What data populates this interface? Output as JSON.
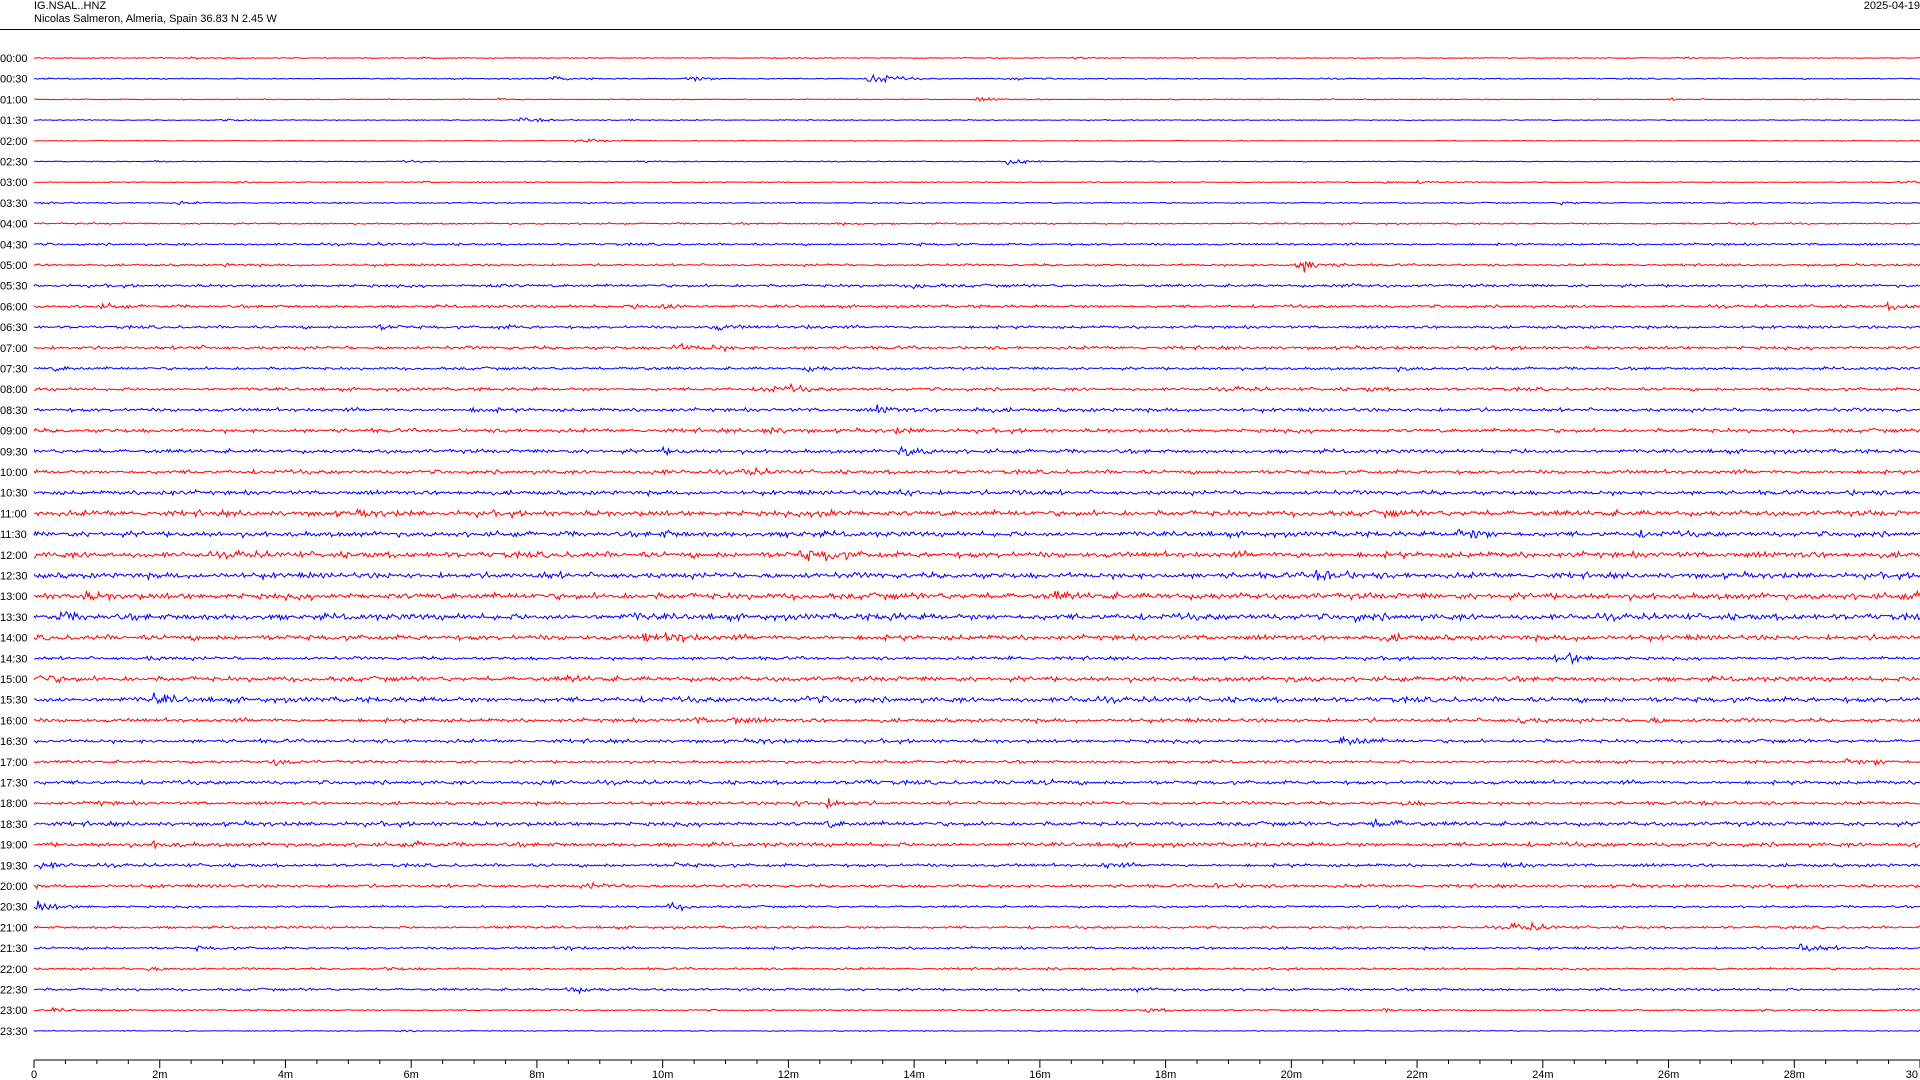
{
  "header": {
    "station_code": "IG.NSAL..HNZ",
    "location": "Nicolas Salmeron, Almeria, Spain  36.83 N 2.45 W",
    "date": "2025-04-19"
  },
  "chart_data": {
    "type": "line",
    "title": "IG.NSAL..HNZ",
    "subtitle": "Nicolas Salmeron, Almeria, Spain  36.83 N 2.45 W",
    "xlabel": "",
    "ylabel": "",
    "x_unit": "minutes",
    "xlim": [
      0,
      30
    ],
    "x_ticks": [
      "0",
      "2m",
      "4m",
      "6m",
      "8m",
      "10m",
      "12m",
      "14m",
      "16m",
      "18m",
      "20m",
      "22m",
      "24m",
      "26m",
      "28m",
      "30"
    ],
    "colors": {
      "even_rows": "#ff0000",
      "odd_rows": "#0000ff"
    },
    "rows": [
      {
        "label": "00:00",
        "noise": 0.15,
        "events": [
          [
            2.5,
            0.4
          ],
          [
            6.2,
            0.3
          ],
          [
            16.5,
            0.3
          ],
          [
            26.3,
            0.3
          ],
          [
            30,
            0.4
          ]
        ]
      },
      {
        "label": "00:30",
        "noise": 0.2,
        "events": [
          [
            8.2,
            0.8
          ],
          [
            10.4,
            1.2
          ],
          [
            13.3,
            3.0
          ],
          [
            15.5,
            0.7
          ]
        ]
      },
      {
        "label": "01:00",
        "noise": 0.15,
        "events": [
          [
            7.4,
            0.4
          ],
          [
            15.0,
            0.8
          ],
          [
            20.4,
            0.4
          ],
          [
            26.0,
            0.3
          ]
        ]
      },
      {
        "label": "01:30",
        "noise": 0.15,
        "events": [
          [
            3.0,
            0.5
          ],
          [
            7.7,
            0.8
          ],
          [
            8.0,
            0.5
          ],
          [
            9.5,
            0.3
          ]
        ]
      },
      {
        "label": "02:00",
        "noise": 0.12,
        "events": [
          [
            8.8,
            0.6
          ],
          [
            8.6,
            0.3
          ]
        ]
      },
      {
        "label": "02:30",
        "noise": 0.15,
        "events": [
          [
            1.9,
            0.3
          ],
          [
            5.9,
            0.3
          ],
          [
            9.6,
            0.3
          ],
          [
            15.5,
            1.5
          ]
        ]
      },
      {
        "label": "03:00",
        "noise": 0.15,
        "events": [
          [
            3.2,
            0.4
          ],
          [
            6.2,
            0.3
          ],
          [
            21.5,
            0.5
          ],
          [
            22.0,
            0.5
          ],
          [
            29.7,
            0.4
          ]
        ]
      },
      {
        "label": "03:30",
        "noise": 0.2,
        "events": [
          [
            0.15,
            0.5
          ],
          [
            2.3,
            0.4
          ],
          [
            24.3,
            0.5
          ]
        ]
      },
      {
        "label": "04:00",
        "noise": 0.25,
        "events": [
          [
            12.8,
            0.4
          ],
          [
            27.0,
            0.5
          ]
        ]
      },
      {
        "label": "04:30",
        "noise": 0.35,
        "events": [
          [
            5.5,
            0.3
          ],
          [
            14.0,
            0.3
          ]
        ]
      },
      {
        "label": "05:00",
        "noise": 0.35,
        "events": [
          [
            3.0,
            0.3
          ],
          [
            20.1,
            1.6
          ],
          [
            20.2,
            1.0
          ]
        ]
      },
      {
        "label": "05:30",
        "noise": 0.45,
        "events": [
          [
            7.2,
            0.6
          ],
          [
            14.0,
            1.0
          ],
          [
            20.7,
            0.6
          ]
        ]
      },
      {
        "label": "06:00",
        "noise": 0.45,
        "events": [
          [
            1.1,
            0.7
          ],
          [
            9.5,
            0.9
          ],
          [
            10.0,
            1.2
          ],
          [
            29.5,
            1.0
          ]
        ]
      },
      {
        "label": "06:30",
        "noise": 0.45,
        "events": [
          [
            5.5,
            0.8
          ],
          [
            7.4,
            0.6
          ],
          [
            10.8,
            1.2
          ],
          [
            12.2,
            0.5
          ]
        ]
      },
      {
        "label": "07:00",
        "noise": 0.5,
        "events": [
          [
            2.5,
            0.5
          ],
          [
            10.2,
            1.3
          ],
          [
            10.8,
            0.6
          ]
        ]
      },
      {
        "label": "07:30",
        "noise": 0.45,
        "events": [
          [
            0.35,
            0.6
          ],
          [
            9.5,
            0.5
          ],
          [
            12.3,
            1.0
          ],
          [
            21.7,
            0.5
          ]
        ]
      },
      {
        "label": "08:00",
        "noise": 0.5,
        "events": [
          [
            11.6,
            1.2
          ],
          [
            12.0,
            0.8
          ],
          [
            19.1,
            0.6
          ],
          [
            21.2,
            0.5
          ]
        ]
      },
      {
        "label": "08:30",
        "noise": 0.55,
        "events": [
          [
            7.0,
            0.6
          ],
          [
            13.4,
            1.2
          ],
          [
            15.0,
            0.6
          ]
        ]
      },
      {
        "label": "09:00",
        "noise": 0.6,
        "events": [
          [
            11.6,
            1.3
          ],
          [
            13.7,
            0.7
          ]
        ]
      },
      {
        "label": "09:30",
        "noise": 0.6,
        "events": [
          [
            10.0,
            0.7
          ],
          [
            13.8,
            1.8
          ],
          [
            23.7,
            0.5
          ]
        ]
      },
      {
        "label": "10:00",
        "noise": 0.6,
        "events": [
          [
            9.8,
            0.6
          ],
          [
            11.3,
            1.3
          ]
        ]
      },
      {
        "label": "10:30",
        "noise": 0.65,
        "events": [
          [
            1.9,
            0.7
          ],
          [
            13.7,
            1.5
          ],
          [
            15.6,
            1.0
          ],
          [
            28.9,
            0.6
          ]
        ]
      },
      {
        "label": "11:00",
        "noise": 0.85,
        "events": [
          [
            5.2,
            0.7
          ],
          [
            12.5,
            1.8
          ],
          [
            21.5,
            0.6
          ]
        ]
      },
      {
        "label": "11:30",
        "noise": 0.8,
        "events": [
          [
            10.0,
            0.8
          ],
          [
            12.0,
            0.8
          ],
          [
            22.6,
            1.5
          ],
          [
            22.9,
            0.9
          ],
          [
            25.5,
            0.7
          ]
        ]
      },
      {
        "label": "12:00",
        "noise": 0.9,
        "events": [
          [
            3.2,
            0.6
          ],
          [
            12.2,
            1.8
          ],
          [
            12.6,
            1.2
          ],
          [
            20.0,
            0.6
          ]
        ]
      },
      {
        "label": "12:30",
        "noise": 0.85,
        "events": [
          [
            8.0,
            0.6
          ],
          [
            20.4,
            1.8
          ],
          [
            20.6,
            1.0
          ]
        ]
      },
      {
        "label": "13:00",
        "noise": 0.95,
        "events": [
          [
            0.8,
            1.0
          ],
          [
            16.2,
            1.2
          ],
          [
            29.8,
            0.8
          ]
        ]
      },
      {
        "label": "13:30",
        "noise": 0.95,
        "events": [
          [
            0.4,
            1.1
          ],
          [
            9.5,
            0.7
          ],
          [
            13.5,
            0.7
          ],
          [
            21.0,
            0.7
          ]
        ]
      },
      {
        "label": "14:00",
        "noise": 0.8,
        "events": [
          [
            9.7,
            1.4
          ],
          [
            10.1,
            1.8
          ],
          [
            21.5,
            0.7
          ],
          [
            24.4,
            0.6
          ]
        ]
      },
      {
        "label": "14:30",
        "noise": 0.5,
        "events": [
          [
            1.8,
            0.5
          ],
          [
            15.5,
            0.6
          ],
          [
            24.4,
            1.5
          ],
          [
            24.2,
            0.8
          ]
        ]
      },
      {
        "label": "15:00",
        "noise": 0.75,
        "events": [
          [
            0.1,
            1.3
          ],
          [
            8.5,
            0.7
          ],
          [
            20.0,
            0.6
          ]
        ]
      },
      {
        "label": "15:30",
        "noise": 0.8,
        "events": [
          [
            1.9,
            1.6
          ],
          [
            12.3,
            0.9
          ],
          [
            16.5,
            0.5
          ]
        ]
      },
      {
        "label": "16:00",
        "noise": 0.6,
        "events": [
          [
            10.5,
            0.8
          ],
          [
            11.1,
            1.3
          ],
          [
            23.6,
            1.0
          ],
          [
            25.7,
            0.7
          ]
        ]
      },
      {
        "label": "16:30",
        "noise": 0.55,
        "events": [
          [
            11.5,
            0.6
          ],
          [
            20.8,
            1.5
          ],
          [
            20.9,
            1.0
          ]
        ]
      },
      {
        "label": "17:00",
        "noise": 0.45,
        "events": [
          [
            3.8,
            1.0
          ],
          [
            28.8,
            1.0
          ],
          [
            29.3,
            0.8
          ]
        ]
      },
      {
        "label": "17:30",
        "noise": 0.6,
        "events": [
          [
            8.0,
            0.7
          ],
          [
            13.1,
            0.7
          ],
          [
            15.5,
            0.8
          ],
          [
            16.1,
            0.6
          ]
        ]
      },
      {
        "label": "18:00",
        "noise": 0.5,
        "events": [
          [
            0.9,
            0.8
          ],
          [
            12.1,
            0.9
          ],
          [
            12.6,
            1.6
          ],
          [
            21.8,
            0.8
          ],
          [
            26.5,
            0.6
          ]
        ]
      },
      {
        "label": "18:30",
        "noise": 0.65,
        "events": [
          [
            12.6,
            0.9
          ],
          [
            21.3,
            1.2
          ],
          [
            21.6,
            0.7
          ]
        ]
      },
      {
        "label": "19:00",
        "noise": 0.65,
        "events": [
          [
            1.9,
            0.9
          ],
          [
            6.0,
            0.6
          ],
          [
            29.9,
            1.0
          ]
        ]
      },
      {
        "label": "19:30",
        "noise": 0.5,
        "events": [
          [
            0.1,
            1.3
          ],
          [
            10.2,
            0.6
          ],
          [
            17.0,
            0.9
          ],
          [
            23.4,
            0.5
          ]
        ]
      },
      {
        "label": "20:00",
        "noise": 0.5,
        "events": [
          [
            8.8,
            0.9
          ],
          [
            18.8,
            1.0
          ]
        ]
      },
      {
        "label": "20:30",
        "noise": 0.35,
        "events": [
          [
            0.05,
            2.0
          ],
          [
            10.1,
            1.3
          ],
          [
            21.3,
            0.6
          ]
        ]
      },
      {
        "label": "21:00",
        "noise": 0.4,
        "events": [
          [
            7.3,
            0.6
          ],
          [
            23.5,
            1.3
          ],
          [
            23.8,
            0.8
          ]
        ]
      },
      {
        "label": "21:30",
        "noise": 0.4,
        "events": [
          [
            2.6,
            0.6
          ],
          [
            8.4,
            0.7
          ],
          [
            28.1,
            2.0
          ]
        ]
      },
      {
        "label": "22:00",
        "noise": 0.35,
        "events": [
          [
            1.8,
            0.6
          ],
          [
            5.6,
            0.6
          ],
          [
            16.0,
            0.5
          ]
        ]
      },
      {
        "label": "22:30",
        "noise": 0.4,
        "events": [
          [
            8.5,
            1.3
          ],
          [
            17.5,
            0.5
          ]
        ]
      },
      {
        "label": "23:00",
        "noise": 0.25,
        "events": [
          [
            0.3,
            0.5
          ],
          [
            17.7,
            0.8
          ],
          [
            21.5,
            0.5
          ],
          [
            27.5,
            0.4
          ]
        ]
      },
      {
        "label": "23:30",
        "noise": 0.15,
        "events": [
          [
            2.2,
            0.3
          ],
          [
            5.8,
            0.4
          ]
        ]
      }
    ]
  }
}
